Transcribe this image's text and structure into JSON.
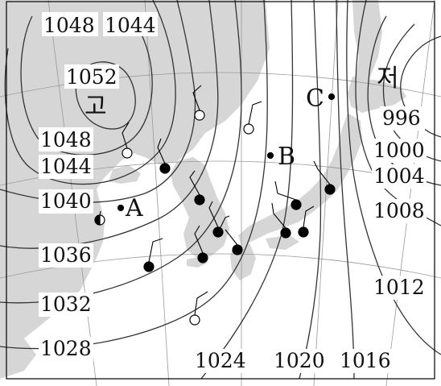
{
  "map": {
    "pressure_systems": [
      {
        "key": "high",
        "label": "고"
      },
      {
        "key": "low",
        "label": "저"
      }
    ],
    "isobars": [
      {
        "key": "i1052",
        "label": "1052"
      },
      {
        "key": "i1048a",
        "label": "1048"
      },
      {
        "key": "i1044a",
        "label": "1044"
      },
      {
        "key": "i1048b",
        "label": "1048"
      },
      {
        "key": "i1044b",
        "label": "1044"
      },
      {
        "key": "i1040",
        "label": "1040"
      },
      {
        "key": "i1036",
        "label": "1036"
      },
      {
        "key": "i1032",
        "label": "1032"
      },
      {
        "key": "i1028",
        "label": "1028"
      },
      {
        "key": "i1024",
        "label": "1024"
      },
      {
        "key": "i1020",
        "label": "1020"
      },
      {
        "key": "i1016",
        "label": "1016"
      },
      {
        "key": "i1012",
        "label": "1012"
      },
      {
        "key": "i1008",
        "label": "1008"
      },
      {
        "key": "i1004",
        "label": "1004"
      },
      {
        "key": "i1000",
        "label": "1000"
      },
      {
        "key": "i996",
        "label": "996"
      }
    ],
    "points": [
      {
        "key": "A",
        "label": "A"
      },
      {
        "key": "B",
        "label": "B"
      },
      {
        "key": "C",
        "label": "C"
      }
    ],
    "colors": {
      "land": "#d6d6d6",
      "sea": "#ffffff",
      "isobar": "#333333",
      "grid": "#999999",
      "station": "#000000"
    }
  }
}
